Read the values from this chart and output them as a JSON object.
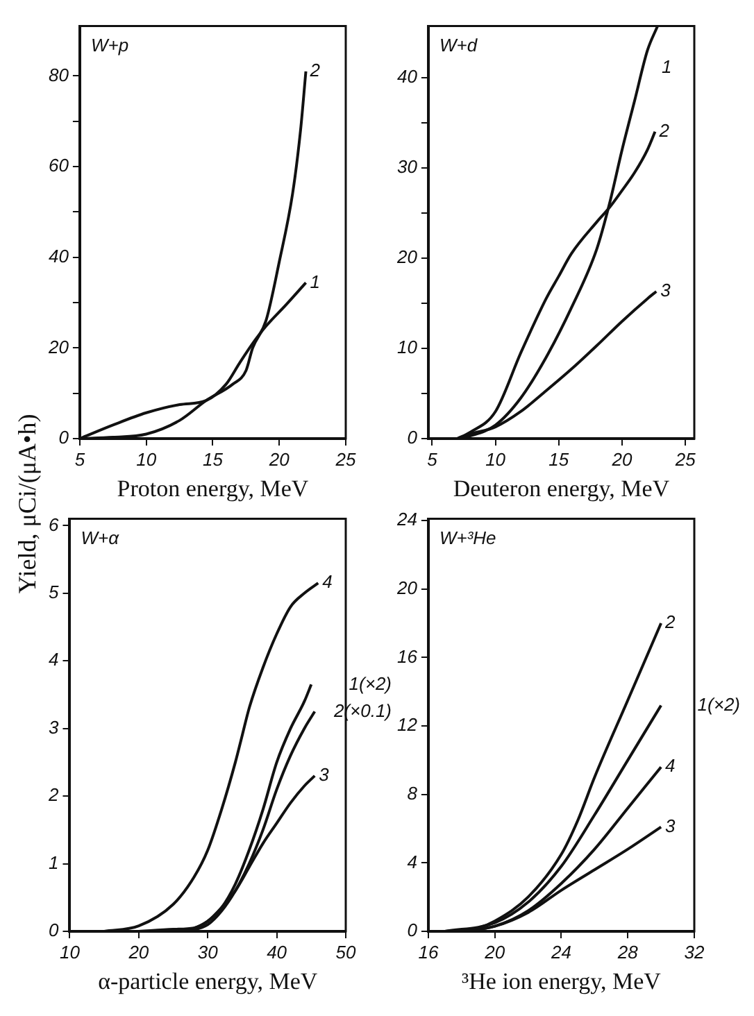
{
  "chart_data": [
    {
      "type": "line",
      "title": "W+p",
      "xlabel": "Proton energy, MeV",
      "ylabel": "Yield, μCi/(μA•h)",
      "xlim": [
        5,
        25
      ],
      "ylim": [
        0,
        91
      ],
      "xticks": [
        5,
        10,
        15,
        20,
        25
      ],
      "yticks": [
        0,
        {
          "value": 10,
          "label": null
        },
        20,
        {
          "value": 30,
          "label": null
        },
        40,
        {
          "value": 50,
          "label": null
        },
        60,
        {
          "value": 70,
          "label": null
        },
        80
      ],
      "grid": false,
      "legend": false,
      "marker": "none",
      "series": [
        {
          "name": "1",
          "color": "#111111",
          "x": [
            5,
            7.5,
            10,
            12.5,
            14.5,
            16,
            17,
            18,
            19,
            20.5,
            22
          ],
          "values": [
            0,
            3,
            5.7,
            7.5,
            8.4,
            12,
            16.6,
            21,
            24.8,
            29.5,
            34.4
          ]
        },
        {
          "name": "2",
          "color": "#111111",
          "x": [
            5,
            7.5,
            10,
            12.5,
            14.5,
            16.5,
            17.5,
            18,
            19,
            20,
            21,
            21.6,
            22
          ],
          "values": [
            0,
            0.3,
            1,
            4,
            8.4,
            12,
            15,
            20,
            26,
            39,
            54,
            68,
            81
          ]
        }
      ]
    },
    {
      "type": "line",
      "title": "W+d",
      "xlabel": "Deuteron energy, MeV",
      "xlim": [
        4.7,
        25.7
      ],
      "ylim": [
        0,
        45.7
      ],
      "xticks": [
        5,
        10,
        15,
        {
          "value": 20,
          "label": "20"
        },
        25
      ],
      "yticks": [
        0,
        {
          "value": 5,
          "label": null
        },
        10,
        {
          "value": 15,
          "label": null
        },
        20,
        {
          "value": 25,
          "label": null
        },
        30,
        {
          "value": 35,
          "label": null
        },
        40
      ],
      "grid": false,
      "legend": false,
      "marker": "none",
      "series": [
        {
          "name": "1",
          "color": "#111111",
          "x": [
            7,
            8,
            10,
            12,
            14,
            16,
            18,
            19,
            20,
            21,
            22,
            22.8
          ],
          "values": [
            0,
            0.3,
            1.5,
            4.5,
            9,
            14.5,
            21,
            26,
            32,
            37.5,
            43,
            45.7
          ]
        },
        {
          "name": "2",
          "color": "#111111",
          "x": [
            7,
            8,
            10,
            12,
            14,
            15,
            16,
            18,
            19,
            20,
            21,
            22,
            22.6
          ],
          "values": [
            0,
            0.7,
            3,
            9.5,
            15.5,
            18,
            20.5,
            24,
            25.6,
            27.5,
            29.5,
            32,
            34
          ]
        },
        {
          "name": "3",
          "color": "#111111",
          "x": [
            7,
            8,
            10,
            12,
            14,
            16,
            18,
            20,
            22,
            22.7
          ],
          "values": [
            0,
            0.5,
            1.3,
            3,
            5.3,
            7.7,
            10.3,
            13,
            15.5,
            16.3
          ]
        }
      ]
    },
    {
      "type": "line",
      "title": "W+α",
      "xlabel": "α-particle energy, MeV",
      "xlim": [
        10,
        50
      ],
      "ylim": [
        0,
        6.1
      ],
      "xticks": [
        10,
        20,
        30,
        40,
        50
      ],
      "yticks": [
        0,
        1,
        2,
        3,
        4,
        5,
        6
      ],
      "grid": false,
      "legend": false,
      "marker": "none",
      "series": [
        {
          "name": "4",
          "color": "#111111",
          "x": [
            15,
            20,
            25,
            28,
            30,
            32,
            34,
            35,
            36,
            38,
            40,
            42,
            44,
            46
          ],
          "values": [
            0,
            0.08,
            0.4,
            0.8,
            1.2,
            1.8,
            2.5,
            2.9,
            3.3,
            3.9,
            4.4,
            4.8,
            5,
            5.15
          ]
        },
        {
          "name": "1(×2)",
          "color": "#111111",
          "x": [
            20,
            25,
            28,
            30,
            32,
            34,
            36,
            38,
            40,
            42,
            44,
            45
          ],
          "values": [
            0,
            0.03,
            0.05,
            0.15,
            0.35,
            0.7,
            1.2,
            1.8,
            2.5,
            3,
            3.4,
            3.65
          ]
        },
        {
          "name": "2(×0.1)",
          "color": "#111111",
          "x": [
            27,
            30,
            32,
            34,
            36,
            38,
            40,
            42,
            44,
            45.5
          ],
          "values": [
            0,
            0.1,
            0.3,
            0.6,
            1,
            1.5,
            2.1,
            2.6,
            3,
            3.25
          ]
        },
        {
          "name": "3",
          "color": "#111111",
          "x": [
            27,
            30,
            32,
            34,
            36,
            38,
            40,
            42,
            44,
            45.5
          ],
          "values": [
            0,
            0.15,
            0.35,
            0.6,
            0.95,
            1.3,
            1.6,
            1.9,
            2.15,
            2.3
          ]
        }
      ]
    },
    {
      "type": "line",
      "title": "W+³He",
      "xlabel": "³He ion energy, MeV",
      "xlim": [
        16,
        32
      ],
      "ylim": [
        0,
        24.1
      ],
      "xticks": [
        16,
        20,
        24,
        28,
        32
      ],
      "yticks": [
        0,
        4,
        8,
        12,
        16,
        20,
        24
      ],
      "grid": false,
      "legend": false,
      "marker": "none",
      "series": [
        {
          "name": "2",
          "color": "#111111",
          "x": [
            17,
            19,
            20,
            22,
            24,
            25,
            26,
            28,
            30
          ],
          "values": [
            0,
            0.2,
            0.6,
            2,
            4.5,
            6.5,
            9,
            13.5,
            18
          ]
        },
        {
          "name": "1(×2)",
          "color": "#111111",
          "x": [
            17,
            20,
            22,
            24,
            26,
            28,
            30
          ],
          "values": [
            0,
            0.5,
            1.7,
            3.8,
            6.8,
            10,
            13.2
          ]
        },
        {
          "name": "4",
          "color": "#111111",
          "x": [
            18,
            20,
            22,
            24,
            26,
            28,
            30
          ],
          "values": [
            0,
            0.3,
            1.2,
            2.8,
            4.8,
            7.2,
            9.6
          ]
        },
        {
          "name": "3",
          "color": "#111111",
          "x": [
            18,
            20,
            22,
            24,
            26,
            28,
            30
          ],
          "values": [
            0,
            0.3,
            1.1,
            2.4,
            3.6,
            4.8,
            6.1
          ]
        }
      ]
    }
  ]
}
